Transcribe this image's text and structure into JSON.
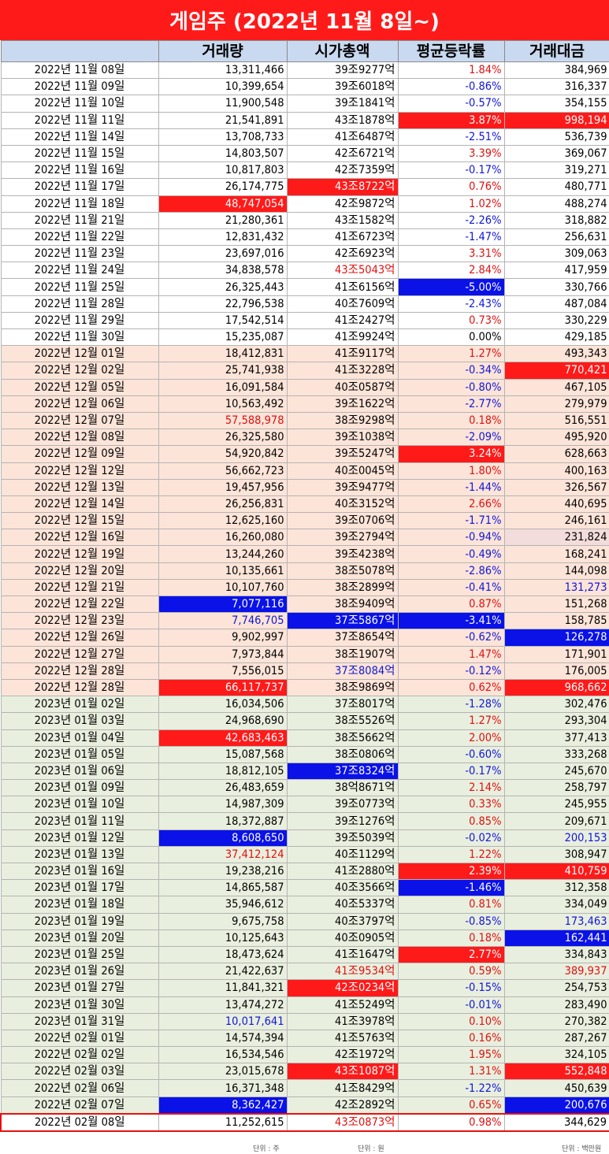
{
  "title": "게임주 (2022년 11월 8일~)",
  "columns": [
    "",
    "거래량",
    "시가총액",
    "평균등락률",
    "거래대금"
  ],
  "units": {
    "volume": "단위 : 주",
    "cap": "단위 : 원",
    "amount": "단위 : 백만원"
  },
  "colors": {
    "red": "#ff1a1a",
    "blue": "#0a12e8",
    "header": "#c9d9ef",
    "nov": "#ffffff",
    "dec": "#fde4d8",
    "jan": "#e9efde"
  },
  "rows": [
    {
      "date": "2022년 11월 08일",
      "vol": "13,311,466",
      "cap": "39조9277억",
      "rate": "1.84%",
      "amt": "384,969",
      "g": 0,
      "hv": "",
      "hc": "",
      "hr": "",
      "ha": ""
    },
    {
      "date": "2022년 11월 09일",
      "vol": "10,399,654",
      "cap": "39조6018억",
      "rate": "-0.86%",
      "amt": "316,337",
      "g": 0,
      "hv": "",
      "hc": "",
      "hr": "",
      "ha": ""
    },
    {
      "date": "2022년 11월 10일",
      "vol": "11,900,548",
      "cap": "39조1841억",
      "rate": "-0.57%",
      "amt": "354,155",
      "g": 0,
      "hv": "",
      "hc": "",
      "hr": "",
      "ha": ""
    },
    {
      "date": "2022년 11월 11일",
      "vol": "21,541,891",
      "cap": "43조1878억",
      "rate": "3.87%",
      "amt": "998,194",
      "g": 0,
      "hv": "",
      "hc": "",
      "hr": "bgr",
      "ha": "bgr"
    },
    {
      "date": "2022년 11월 14일",
      "vol": "13,708,733",
      "cap": "41조6487억",
      "rate": "-2.51%",
      "amt": "536,739",
      "g": 0,
      "hv": "",
      "hc": "",
      "hr": "",
      "ha": ""
    },
    {
      "date": "2022년 11월 15일",
      "vol": "14,803,507",
      "cap": "42조6721억",
      "rate": "3.39%",
      "amt": "369,067",
      "g": 0,
      "hv": "",
      "hc": "",
      "hr": "",
      "ha": ""
    },
    {
      "date": "2022년 11월 16일",
      "vol": "10,817,803",
      "cap": "42조7359억",
      "rate": "-0.17%",
      "amt": "319,271",
      "g": 0,
      "hv": "",
      "hc": "",
      "hr": "",
      "ha": ""
    },
    {
      "date": "2022년 11월 17일",
      "vol": "26,174,775",
      "cap": "43조8722억",
      "rate": "0.76%",
      "amt": "480,771",
      "g": 0,
      "hv": "",
      "hc": "bgr",
      "hr": "",
      "ha": ""
    },
    {
      "date": "2022년 11월 18일",
      "vol": "48,747,054",
      "cap": "42조9872억",
      "rate": "1.02%",
      "amt": "488,274",
      "g": 0,
      "hv": "bgr",
      "hc": "",
      "hr": "",
      "ha": ""
    },
    {
      "date": "2022년 11월 21일",
      "vol": "21,280,361",
      "cap": "43조1582억",
      "rate": "-2.26%",
      "amt": "318,882",
      "g": 0,
      "hv": "",
      "hc": "",
      "hr": "",
      "ha": ""
    },
    {
      "date": "2022년 11월 22일",
      "vol": "12,831,432",
      "cap": "41조6723억",
      "rate": "-1.47%",
      "amt": "256,631",
      "g": 0,
      "hv": "",
      "hc": "",
      "hr": "",
      "ha": ""
    },
    {
      "date": "2022년 11월 23일",
      "vol": "23,697,016",
      "cap": "42조6923억",
      "rate": "3.31%",
      "amt": "309,063",
      "g": 0,
      "hv": "",
      "hc": "",
      "hr": "",
      "ha": ""
    },
    {
      "date": "2022년 11월 24일",
      "vol": "34,838,578",
      "cap": "43조5043억",
      "rate": "2.84%",
      "amt": "417,959",
      "g": 0,
      "hv": "",
      "hc": "txr",
      "hr": "",
      "ha": ""
    },
    {
      "date": "2022년 11월 25일",
      "vol": "26,325,443",
      "cap": "41조6156억",
      "rate": "-5.00%",
      "amt": "330,766",
      "g": 0,
      "hv": "",
      "hc": "",
      "hr": "bgb",
      "ha": ""
    },
    {
      "date": "2022년 11월 28일",
      "vol": "22,796,538",
      "cap": "40조7609억",
      "rate": "-2.43%",
      "amt": "487,084",
      "g": 0,
      "hv": "",
      "hc": "",
      "hr": "",
      "ha": ""
    },
    {
      "date": "2022년 11월 29일",
      "vol": "17,542,514",
      "cap": "41조2427억",
      "rate": "0.73%",
      "amt": "330,229",
      "g": 0,
      "hv": "",
      "hc": "",
      "hr": "",
      "ha": ""
    },
    {
      "date": "2022년 11월 30일",
      "vol": "15,235,087",
      "cap": "41조9924억",
      "rate": "0.00%",
      "amt": "429,185",
      "g": 0,
      "hv": "",
      "hc": "",
      "hr": "",
      "ha": ""
    },
    {
      "date": "2022년 12월 01일",
      "vol": "18,412,831",
      "cap": "41조9117억",
      "rate": "1.27%",
      "amt": "493,343",
      "g": 1,
      "hv": "",
      "hc": "",
      "hr": "",
      "ha": ""
    },
    {
      "date": "2022년 12월 02일",
      "vol": "25,741,938",
      "cap": "41조3228억",
      "rate": "-0.34%",
      "amt": "770,421",
      "g": 1,
      "hv": "",
      "hc": "",
      "hr": "",
      "ha": "bgr"
    },
    {
      "date": "2022년 12월 05일",
      "vol": "16,091,584",
      "cap": "40조0587억",
      "rate": "-0.80%",
      "amt": "467,105",
      "g": 1,
      "hv": "",
      "hc": "",
      "hr": "",
      "ha": ""
    },
    {
      "date": "2022년 12월 06일",
      "vol": "10,563,492",
      "cap": "39조1622억",
      "rate": "-2.77%",
      "amt": "279,979",
      "g": 1,
      "hv": "",
      "hc": "",
      "hr": "",
      "ha": ""
    },
    {
      "date": "2022년 12월 07일",
      "vol": "57,588,978",
      "cap": "38조9298억",
      "rate": "0.18%",
      "amt": "516,551",
      "g": 1,
      "hv": "txr",
      "hc": "",
      "hr": "",
      "ha": ""
    },
    {
      "date": "2022년 12월 08일",
      "vol": "26,325,580",
      "cap": "39조1038억",
      "rate": "-2.09%",
      "amt": "495,920",
      "g": 1,
      "hv": "",
      "hc": "",
      "hr": "",
      "ha": ""
    },
    {
      "date": "2022년 12월 09일",
      "vol": "54,920,842",
      "cap": "39조5247억",
      "rate": "3.24%",
      "amt": "628,663",
      "g": 1,
      "hv": "",
      "hc": "",
      "hr": "bgr",
      "ha": ""
    },
    {
      "date": "2022년 12월 12일",
      "vol": "56,662,723",
      "cap": "40조0045억",
      "rate": "1.80%",
      "amt": "400,163",
      "g": 1,
      "hv": "",
      "hc": "",
      "hr": "",
      "ha": ""
    },
    {
      "date": "2022년 12월 13일",
      "vol": "19,457,956",
      "cap": "39조9477억",
      "rate": "-1.44%",
      "amt": "326,567",
      "g": 1,
      "hv": "",
      "hc": "",
      "hr": "",
      "ha": ""
    },
    {
      "date": "2022년 12월 14일",
      "vol": "26,256,831",
      "cap": "40조3152억",
      "rate": "2.66%",
      "amt": "440,695",
      "g": 1,
      "hv": "",
      "hc": "",
      "hr": "",
      "ha": ""
    },
    {
      "date": "2022년 12월 15일",
      "vol": "12,625,160",
      "cap": "39조0706억",
      "rate": "-1.71%",
      "amt": "246,161",
      "g": 1,
      "hv": "",
      "hc": "",
      "hr": "",
      "ha": ""
    },
    {
      "date": "2022년 12월 16일",
      "vol": "16,260,080",
      "cap": "39조2794억",
      "rate": "-0.94%",
      "amt": "231,824",
      "g": 1,
      "hv": "",
      "hc": "",
      "hr": "",
      "ha": "bgp"
    },
    {
      "date": "2022년 12월 19일",
      "vol": "13,244,260",
      "cap": "39조4238억",
      "rate": "-0.49%",
      "amt": "168,241",
      "g": 1,
      "hv": "",
      "hc": "",
      "hr": "",
      "ha": ""
    },
    {
      "date": "2022년 12월 20일",
      "vol": "10,135,661",
      "cap": "38조5078억",
      "rate": "-2.86%",
      "amt": "144,098",
      "g": 1,
      "hv": "",
      "hc": "",
      "hr": "",
      "ha": ""
    },
    {
      "date": "2022년 12월 21일",
      "vol": "10,107,760",
      "cap": "38조2899억",
      "rate": "-0.41%",
      "amt": "131,273",
      "g": 1,
      "hv": "",
      "hc": "",
      "hr": "",
      "ha": "txb"
    },
    {
      "date": "2022년 12월 22일",
      "vol": "7,077,116",
      "cap": "38조9409억",
      "rate": "0.87%",
      "amt": "151,268",
      "g": 1,
      "hv": "bgb",
      "hc": "",
      "hr": "",
      "ha": ""
    },
    {
      "date": "2022년 12월 23일",
      "vol": "7,746,705",
      "cap": "37조5867억",
      "rate": "-3.41%",
      "amt": "158,785",
      "g": 1,
      "hv": "txb",
      "hc": "bgb",
      "hr": "bgb",
      "ha": ""
    },
    {
      "date": "2022년 12월 26일",
      "vol": "9,902,997",
      "cap": "37조8654억",
      "rate": "-0.62%",
      "amt": "126,278",
      "g": 1,
      "hv": "",
      "hc": "",
      "hr": "",
      "ha": "bgb"
    },
    {
      "date": "2022년 12월 27일",
      "vol": "7,973,844",
      "cap": "38조1907억",
      "rate": "1.47%",
      "amt": "171,901",
      "g": 1,
      "hv": "",
      "hc": "",
      "hr": "",
      "ha": ""
    },
    {
      "date": "2022년 12월 28일",
      "vol": "7,556,015",
      "cap": "37조8084억",
      "rate": "-0.12%",
      "amt": "176,005",
      "g": 1,
      "hv": "",
      "hc": "txb",
      "hr": "",
      "ha": ""
    },
    {
      "date": "2022년 12월 28일",
      "vol": "66,117,737",
      "cap": "38조9869억",
      "rate": "0.62%",
      "amt": "968,662",
      "g": 1,
      "hv": "bgr",
      "hc": "",
      "hr": "",
      "ha": "bgr"
    },
    {
      "date": "2023년 01월 02일",
      "vol": "16,034,506",
      "cap": "37조8017억",
      "rate": "-1.28%",
      "amt": "302,476",
      "g": 2,
      "hv": "",
      "hc": "",
      "hr": "",
      "ha": ""
    },
    {
      "date": "2023년 01월 03일",
      "vol": "24,968,690",
      "cap": "38조5526억",
      "rate": "1.27%",
      "amt": "293,304",
      "g": 2,
      "hv": "",
      "hc": "",
      "hr": "",
      "ha": ""
    },
    {
      "date": "2023년 01월 04일",
      "vol": "42,683,463",
      "cap": "38조5662억",
      "rate": "2.00%",
      "amt": "377,413",
      "g": 2,
      "hv": "bgr",
      "hc": "",
      "hr": "",
      "ha": ""
    },
    {
      "date": "2023년 01월 05일",
      "vol": "15,087,568",
      "cap": "38조0806억",
      "rate": "-0.60%",
      "amt": "333,268",
      "g": 2,
      "hv": "",
      "hc": "",
      "hr": "",
      "ha": ""
    },
    {
      "date": "2023년 01월 06일",
      "vol": "18,812,105",
      "cap": "37조8324억",
      "rate": "-0.17%",
      "amt": "245,670",
      "g": 2,
      "hv": "",
      "hc": "bgb",
      "hr": "",
      "ha": ""
    },
    {
      "date": "2023년 01월 09일",
      "vol": "26,483,659",
      "cap": "38억8671억",
      "rate": "2.14%",
      "amt": "258,797",
      "g": 2,
      "hv": "",
      "hc": "",
      "hr": "",
      "ha": ""
    },
    {
      "date": "2023년 01월 10일",
      "vol": "14,987,309",
      "cap": "39조0773억",
      "rate": "0.33%",
      "amt": "245,955",
      "g": 2,
      "hv": "",
      "hc": "",
      "hr": "",
      "ha": ""
    },
    {
      "date": "2023년 01월 11일",
      "vol": "18,372,887",
      "cap": "39조1276억",
      "rate": "0.85%",
      "amt": "209,671",
      "g": 2,
      "hv": "",
      "hc": "",
      "hr": "",
      "ha": ""
    },
    {
      "date": "2023년 01월 12일",
      "vol": "8,608,650",
      "cap": "39조5039억",
      "rate": "-0.02%",
      "amt": "200,153",
      "g": 2,
      "hv": "bgb",
      "hc": "",
      "hr": "",
      "ha": "txb"
    },
    {
      "date": "2023년 01월 13일",
      "vol": "37,412,124",
      "cap": "40조1129억",
      "rate": "1.22%",
      "amt": "308,947",
      "g": 2,
      "hv": "txr",
      "hc": "",
      "hr": "",
      "ha": ""
    },
    {
      "date": "2023년 01월 16일",
      "vol": "19,238,216",
      "cap": "41조2880억",
      "rate": "2.39%",
      "amt": "410,759",
      "g": 2,
      "hv": "",
      "hc": "",
      "hr": "bgr",
      "ha": "bgr"
    },
    {
      "date": "2023년 01월 17일",
      "vol": "14,865,587",
      "cap": "40조3566억",
      "rate": "-1.46%",
      "amt": "312,358",
      "g": 2,
      "hv": "",
      "hc": "",
      "hr": "bgb",
      "ha": ""
    },
    {
      "date": "2023년 01월 18일",
      "vol": "35,946,612",
      "cap": "40조5337억",
      "rate": "0.81%",
      "amt": "334,049",
      "g": 2,
      "hv": "",
      "hc": "",
      "hr": "",
      "ha": ""
    },
    {
      "date": "2023년 01월 19일",
      "vol": "9,675,758",
      "cap": "40조3797억",
      "rate": "-0.85%",
      "amt": "173,463",
      "g": 2,
      "hv": "",
      "hc": "",
      "hr": "",
      "ha": "txb"
    },
    {
      "date": "2023년 01월 20일",
      "vol": "10,125,643",
      "cap": "40조0905억",
      "rate": "0.18%",
      "amt": "162,441",
      "g": 2,
      "hv": "",
      "hc": "",
      "hr": "",
      "ha": "bgb"
    },
    {
      "date": "2023년 01월 25일",
      "vol": "18,473,624",
      "cap": "41조1647억",
      "rate": "2.77%",
      "amt": "334,843",
      "g": 2,
      "hv": "",
      "hc": "",
      "hr": "bgr",
      "ha": ""
    },
    {
      "date": "2023년 01월 26일",
      "vol": "21,422,637",
      "cap": "41조9534억",
      "rate": "0.59%",
      "amt": "389,937",
      "g": 2,
      "hv": "",
      "hc": "txr",
      "hr": "",
      "ha": "txr"
    },
    {
      "date": "2023년 01월 27일",
      "vol": "11,841,321",
      "cap": "42조0234억",
      "rate": "-0.15%",
      "amt": "254,753",
      "g": 2,
      "hv": "",
      "hc": "bgr",
      "hr": "",
      "ha": ""
    },
    {
      "date": "2023년 01월 30일",
      "vol": "13,474,272",
      "cap": "41조5249억",
      "rate": "-0.01%",
      "amt": "283,490",
      "g": 2,
      "hv": "",
      "hc": "",
      "hr": "",
      "ha": ""
    },
    {
      "date": "2023년 01월 31일",
      "vol": "10,017,641",
      "cap": "41조3978억",
      "rate": "0.10%",
      "amt": "270,382",
      "g": 2,
      "hv": "txb",
      "hc": "",
      "hr": "",
      "ha": ""
    },
    {
      "date": "2022년 02월 01일",
      "vol": "14,574,394",
      "cap": "41조5763억",
      "rate": "0.16%",
      "amt": "287,267",
      "g": 2,
      "hv": "",
      "hc": "",
      "hr": "",
      "ha": ""
    },
    {
      "date": "2022년 02월 02일",
      "vol": "16,534,546",
      "cap": "42조1972억",
      "rate": "1.95%",
      "amt": "324,105",
      "g": 2,
      "hv": "",
      "hc": "",
      "hr": "",
      "ha": ""
    },
    {
      "date": "2022년 02월 03일",
      "vol": "23,015,678",
      "cap": "43조1087억",
      "rate": "1.31%",
      "amt": "552,848",
      "g": 2,
      "hv": "",
      "hc": "bgr",
      "hr": "",
      "ha": "bgr"
    },
    {
      "date": "2022년 02월 06일",
      "vol": "16,371,348",
      "cap": "41조8429억",
      "rate": "-1.22%",
      "amt": "450,639",
      "g": 2,
      "hv": "",
      "hc": "",
      "hr": "",
      "ha": ""
    },
    {
      "date": "2022년 02월 07일",
      "vol": "8,362,427",
      "cap": "42조2892억",
      "rate": "0.65%",
      "amt": "200,676",
      "g": 2,
      "hv": "bgb",
      "hc": "",
      "hr": "",
      "ha": "bgb"
    },
    {
      "date": "2022년 02월 08일",
      "vol": "11,252,615",
      "cap": "43조0873억",
      "rate": "0.98%",
      "amt": "344,629",
      "g": 0,
      "hv": "",
      "hc": "txr",
      "hr": "",
      "ha": ""
    }
  ]
}
